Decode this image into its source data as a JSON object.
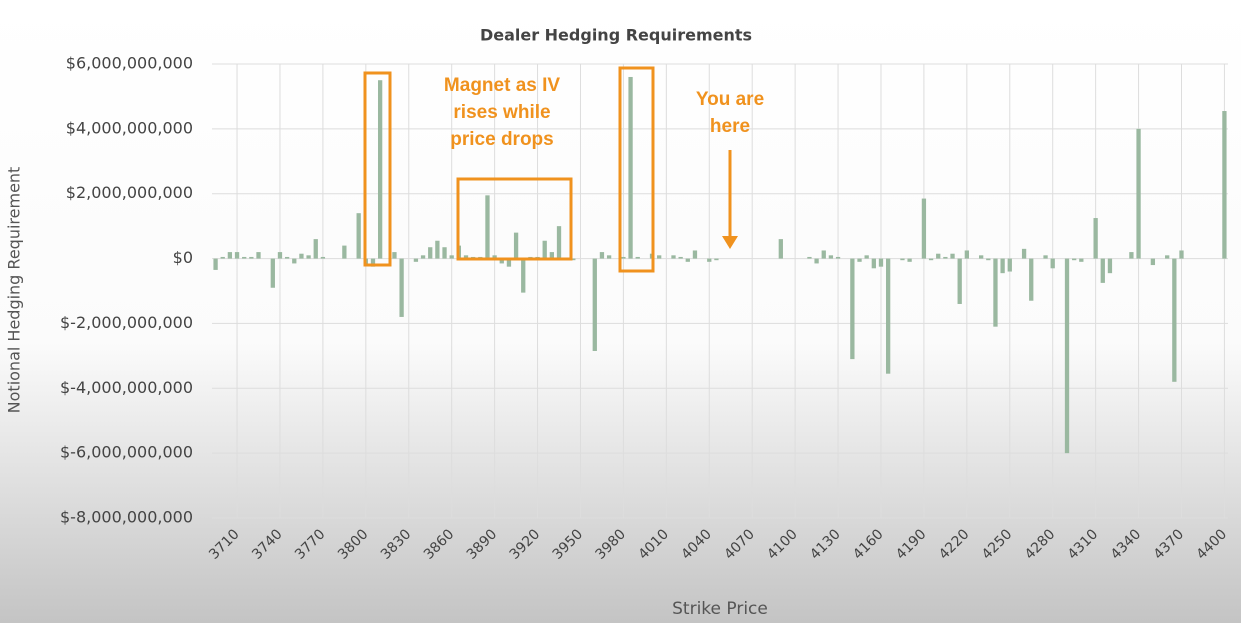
{
  "chart_data": {
    "type": "bar",
    "title": "Dealer Hedging Requirements",
    "x_label": "Strike Price",
    "y_label": "Notional Hedging Requirement",
    "color": "#9ab8a0",
    "grid": true,
    "ylim": [
      -8000000000,
      6000000000
    ],
    "yticks": [
      {
        "value": -8000000000,
        "label": "$-8,000,000,000"
      },
      {
        "value": -6000000000,
        "label": "$-6,000,000,000"
      },
      {
        "value": -4000000000,
        "label": "$-4,000,000,000"
      },
      {
        "value": -2000000000,
        "label": "$-2,000,000,000"
      },
      {
        "value": 0,
        "label": "$0"
      },
      {
        "value": 2000000000,
        "label": "$2,000,000,000"
      },
      {
        "value": 4000000000,
        "label": "$4,000,000,000"
      },
      {
        "value": 6000000000,
        "label": "$6,000,000,000"
      }
    ],
    "categories": [
      null,
      null,
      null,
      "3710",
      null,
      null,
      null,
      null,
      null,
      "3740",
      null,
      null,
      null,
      null,
      null,
      "3770",
      null,
      null,
      null,
      null,
      null,
      "3800",
      null,
      null,
      null,
      null,
      null,
      "3830",
      null,
      null,
      null,
      null,
      null,
      "3860",
      null,
      null,
      null,
      null,
      null,
      "3890",
      null,
      null,
      null,
      null,
      null,
      "3920",
      null,
      null,
      null,
      null,
      null,
      "3950",
      null,
      null,
      null,
      null,
      null,
      "3980",
      null,
      null,
      null,
      null,
      null,
      "4010",
      null,
      null,
      null,
      null,
      null,
      "4040",
      null,
      null,
      null,
      null,
      null,
      "4070",
      null,
      null,
      null,
      null,
      null,
      "4100",
      null,
      null,
      null,
      null,
      null,
      "4130",
      null,
      null,
      null,
      null,
      null,
      "4160",
      null,
      null,
      null,
      null,
      null,
      "4190",
      null,
      null,
      null,
      null,
      null,
      "4220",
      null,
      null,
      null,
      null,
      null,
      "4250",
      null,
      null,
      null,
      null,
      null,
      "4280",
      null,
      null,
      null,
      null,
      null,
      "4310",
      null,
      null,
      null,
      null,
      null,
      "4340",
      null,
      null,
      null,
      null,
      null,
      "4370",
      null,
      null,
      null,
      null,
      null,
      "4400"
    ],
    "values": [
      -350000000,
      50000000,
      200000000,
      200000000,
      50000000,
      50000000,
      200000000,
      0,
      -900000000,
      200000000,
      50000000,
      -150000000,
      150000000,
      100000000,
      600000000,
      50000000,
      0,
      0,
      400000000,
      0,
      1400000000,
      -200000000,
      -250000000,
      5500000000,
      0,
      200000000,
      -1800000000,
      0,
      -100000000,
      100000000,
      350000000,
      550000000,
      350000000,
      100000000,
      400000000,
      100000000,
      50000000,
      50000000,
      1950000000,
      100000000,
      -150000000,
      -250000000,
      800000000,
      -1050000000,
      50000000,
      50000000,
      550000000,
      200000000,
      1000000000,
      0,
      -50000000,
      0,
      0,
      -2850000000,
      200000000,
      100000000,
      0,
      50000000,
      5600000000,
      50000000,
      0,
      150000000,
      100000000,
      0,
      100000000,
      50000000,
      -100000000,
      250000000,
      0,
      -100000000,
      -50000000,
      0,
      0,
      0,
      0,
      0,
      0,
      0,
      0,
      600000000,
      0,
      0,
      0,
      50000000,
      -150000000,
      250000000,
      100000000,
      50000000,
      0,
      -3100000000,
      -100000000,
      100000000,
      -300000000,
      -250000000,
      -3550000000,
      0,
      -50000000,
      -100000000,
      0,
      1850000000,
      -50000000,
      150000000,
      50000000,
      150000000,
      -1400000000,
      250000000,
      0,
      100000000,
      -50000000,
      -2100000000,
      -450000000,
      -400000000,
      0,
      300000000,
      -1300000000,
      0,
      100000000,
      -300000000,
      0,
      -6000000000,
      -50000000,
      -100000000,
      0,
      1250000000,
      -750000000,
      -450000000,
      0,
      0,
      200000000,
      4000000000,
      0,
      -200000000,
      0,
      100000000,
      -3800000000,
      250000000,
      0,
      0,
      0,
      0,
      0,
      4550000000
    ],
    "annotations": [
      {
        "text": [
          "Magnet as IV",
          "rises while",
          "price drops"
        ]
      },
      {
        "text": [
          "You are",
          "here"
        ]
      }
    ]
  }
}
